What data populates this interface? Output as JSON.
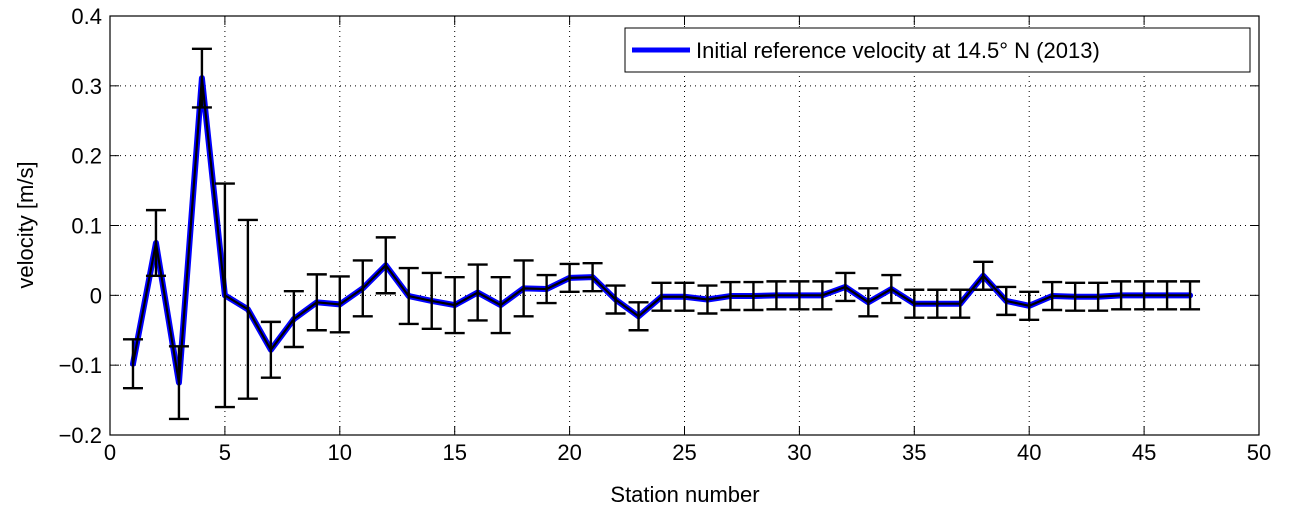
{
  "chart_data": {
    "type": "line",
    "title": "",
    "xlabel": "Station number",
    "ylabel": "velocity [m/s]",
    "xlim": [
      0,
      50
    ],
    "ylim": [
      -0.2,
      0.4
    ],
    "x_ticks": [
      0,
      5,
      10,
      15,
      20,
      25,
      30,
      35,
      40,
      45,
      50
    ],
    "x_tick_labels": [
      "0",
      "5",
      "10",
      "15",
      "20",
      "25",
      "30",
      "35",
      "40",
      "45",
      "50"
    ],
    "y_ticks": [
      -0.2,
      -0.1,
      0,
      0.1,
      0.2,
      0.3,
      0.4
    ],
    "y_tick_labels": [
      "−0.2",
      "−0.1",
      "0",
      "0.1",
      "0.2",
      "0.3",
      "0.4"
    ],
    "grid": true,
    "legend_position": "top-right",
    "series": [
      {
        "name": "Initial reference velocity at 14.5° N (2013)",
        "color": "#0000ff",
        "x": [
          1,
          2,
          3,
          4,
          5,
          6,
          7,
          8,
          9,
          10,
          11,
          12,
          13,
          14,
          15,
          16,
          17,
          18,
          19,
          20,
          21,
          22,
          23,
          24,
          25,
          26,
          27,
          28,
          29,
          30,
          31,
          32,
          33,
          34,
          35,
          36,
          37,
          38,
          39,
          40,
          41,
          42,
          43,
          44,
          45,
          46,
          47
        ],
        "values": [
          -0.098,
          0.075,
          -0.125,
          0.311,
          0.0,
          -0.02,
          -0.078,
          -0.034,
          -0.01,
          -0.013,
          0.01,
          0.043,
          -0.001,
          -0.008,
          -0.014,
          0.004,
          -0.014,
          0.01,
          0.009,
          0.025,
          0.026,
          -0.006,
          -0.03,
          -0.002,
          -0.002,
          -0.006,
          -0.001,
          -0.001,
          0.0,
          0.0,
          0.0,
          0.012,
          -0.01,
          0.009,
          -0.012,
          -0.012,
          -0.012,
          0.028,
          -0.008,
          -0.015,
          -0.001,
          -0.002,
          -0.002,
          0.0,
          0.0,
          0.0,
          0.0
        ],
        "error": [
          0.035,
          0.047,
          0.052,
          0.042,
          0.16,
          0.128,
          0.04,
          0.04,
          0.04,
          0.04,
          0.04,
          0.04,
          0.04,
          0.04,
          0.04,
          0.04,
          0.04,
          0.04,
          0.02,
          0.02,
          0.02,
          0.02,
          0.02,
          0.02,
          0.02,
          0.02,
          0.02,
          0.02,
          0.02,
          0.02,
          0.02,
          0.02,
          0.02,
          0.02,
          0.02,
          0.02,
          0.02,
          0.02,
          0.02,
          0.02,
          0.02,
          0.02,
          0.02,
          0.02,
          0.02,
          0.02,
          0.02
        ]
      }
    ]
  }
}
